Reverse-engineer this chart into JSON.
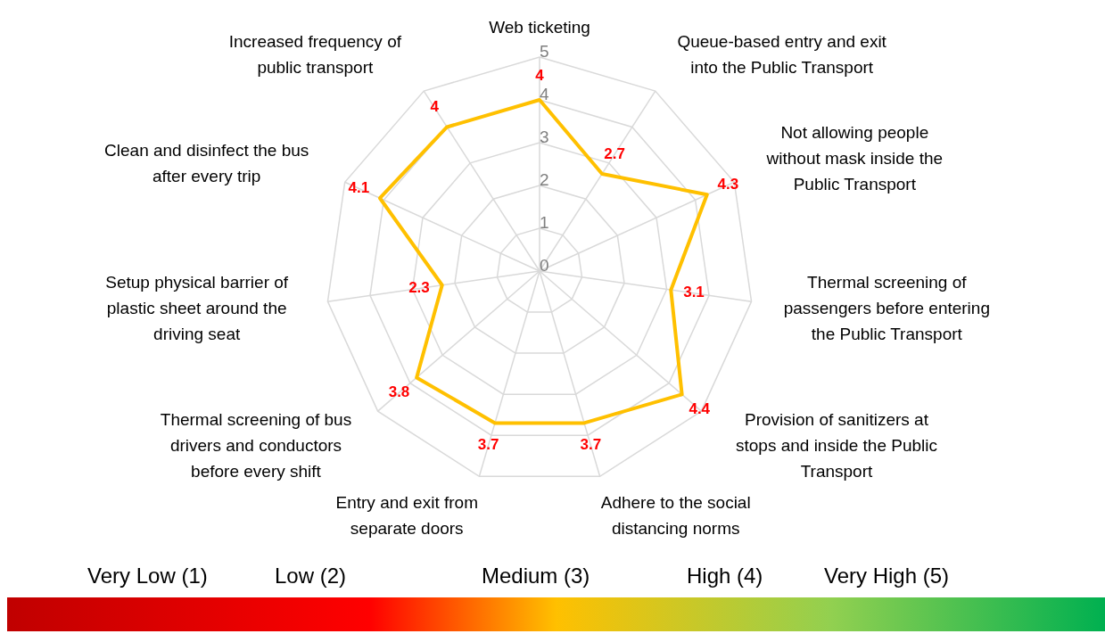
{
  "chart_data": {
    "type": "radar",
    "categories": [
      "Web ticketing",
      "Queue-based entry and exit\ninto the Public Transport",
      "Not allowing people\nwithout mask inside the\nPublic Transport",
      "Thermal screening of\npassengers before entering\nthe Public Transport",
      "Provision of sanitizers at\nstops and inside the Public\nTransport",
      "Adhere to the social\ndistancing norms",
      "Entry and exit from\nseparate doors",
      "Thermal screening of bus\ndrivers and conductors\nbefore  every shift",
      "Setup physical barrier of\nplastic sheet around the\ndriving seat",
      "Clean and disinfect the bus\nafter every trip",
      "Increased frequency of\npublic transport"
    ],
    "series": [
      {
        "color": "#ffc000",
        "values": [
          4,
          2.7,
          4.3,
          3.1,
          4.4,
          3.7,
          3.7,
          3.8,
          2.3,
          4.1,
          4
        ]
      }
    ],
    "ylim": [
      0,
      5
    ],
    "yticks": [
      0,
      1,
      2,
      3,
      4,
      5
    ],
    "grid": true,
    "data_labels": true,
    "marker": "none",
    "line_style": "solid",
    "annotations": [
      "Very Low (1)",
      "Low (2)",
      "Medium (3)",
      "High (4)",
      "Very High (5)"
    ]
  }
}
